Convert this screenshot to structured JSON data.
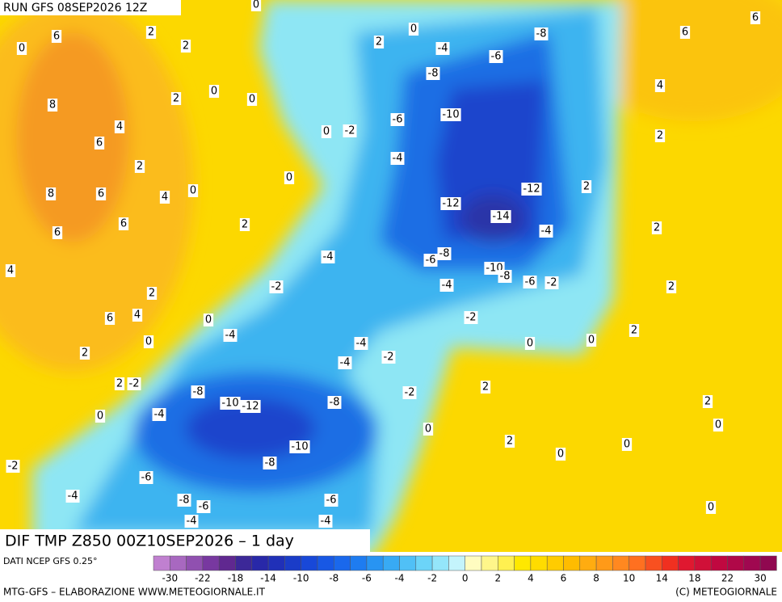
{
  "header": {
    "run": "RUN GFS 08SEP2026 12Z"
  },
  "map": {
    "title": "DIF TMP Z850 00Z10SEP2026 – 1 day",
    "contour_labels": [
      6,
      2,
      0,
      2,
      8,
      2,
      0,
      0,
      4,
      6,
      2,
      8,
      6,
      4,
      0,
      6,
      6,
      2,
      4,
      2,
      4,
      6,
      0,
      0,
      2,
      2,
      -2,
      0,
      -2,
      -4,
      0,
      2,
      0,
      -4,
      -8,
      -6,
      -8,
      0,
      -2,
      -6,
      -10,
      0,
      -4,
      -12,
      -12,
      -14,
      2,
      -4,
      2,
      -4,
      -6,
      -8,
      -10,
      -8,
      -6,
      -2,
      -2,
      -4,
      2,
      -4,
      -2,
      -4,
      0,
      0,
      2,
      -4,
      -2,
      -2,
      2,
      -8,
      -10,
      -12,
      -8,
      -4,
      0,
      -10,
      2,
      -8,
      0,
      0,
      0,
      2,
      -6,
      -8,
      -6,
      -6,
      -4,
      -4,
      0,
      6,
      6,
      4,
      2
    ]
  },
  "legend": {
    "source": "DATI NCEP GFS 0.25°",
    "colors": [
      "#c080d0",
      "#a868c0",
      "#9050b0",
      "#7838a0",
      "#602890",
      "#3c2898",
      "#2828a8",
      "#2030b8",
      "#1a3cc8",
      "#1848d8",
      "#1858e4",
      "#1a68ec",
      "#1e7cf0",
      "#2894f2",
      "#38aaf4",
      "#50c0f6",
      "#6cd4f8",
      "#94e6fa",
      "#c4f4fc",
      "#fffcc0",
      "#fff68a",
      "#fff050",
      "#ffe800",
      "#ffdc00",
      "#ffcc00",
      "#ffbc00",
      "#ffac10",
      "#ff9a18",
      "#ff8820",
      "#ff7020",
      "#f85020",
      "#f03020",
      "#e01830",
      "#d01038",
      "#c00840",
      "#b00848",
      "#a00850",
      "#900850"
    ],
    "ticks": [
      -30,
      -22,
      -18,
      -14,
      -10,
      -8,
      -6,
      -4,
      -2,
      0,
      2,
      4,
      6,
      8,
      10,
      14,
      18,
      22,
      30
    ]
  },
  "footer": {
    "left": "MTG-GFS – ELABORAZIONE WWW.METEOGIORNALE.IT",
    "right": "(C) METEOGIORNALE"
  }
}
